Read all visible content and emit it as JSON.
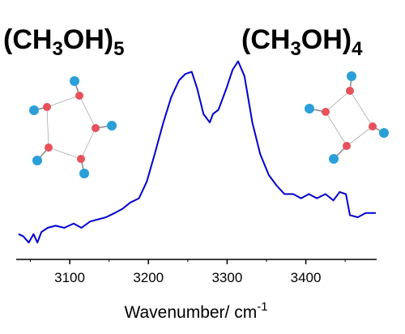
{
  "chart_data": {
    "type": "line",
    "annotations": [
      {
        "parts": [
          "(CH",
          "3",
          "OH)",
          "5"
        ]
      },
      {
        "parts": [
          "(CH",
          "3",
          "OH)",
          "4"
        ]
      }
    ],
    "x_label": {
      "parts": [
        "Wavenumber/ cm",
        "-1"
      ]
    },
    "x": [
      3035,
      3041,
      3048,
      3054,
      3059,
      3064,
      3072,
      3082,
      3093,
      3105,
      3115,
      3126,
      3136,
      3146,
      3157,
      3167,
      3177,
      3188,
      3198,
      3208,
      3219,
      3229,
      3239,
      3247,
      3255,
      3262,
      3270,
      3278,
      3282,
      3289,
      3299,
      3307,
      3314,
      3322,
      3332,
      3342,
      3353,
      3363,
      3373,
      3384,
      3394,
      3404,
      3414,
      3425,
      3435,
      3443,
      3451,
      3456,
      3466,
      3476,
      3489
    ],
    "series": [
      {
        "color": "#0000cc",
        "values": [
          0.12,
          0.11,
          0.08,
          0.12,
          0.08,
          0.13,
          0.15,
          0.16,
          0.15,
          0.17,
          0.15,
          0.18,
          0.19,
          0.2,
          0.22,
          0.24,
          0.27,
          0.29,
          0.37,
          0.5,
          0.65,
          0.77,
          0.85,
          0.88,
          0.89,
          0.81,
          0.69,
          0.65,
          0.69,
          0.71,
          0.81,
          0.9,
          0.94,
          0.87,
          0.65,
          0.5,
          0.4,
          0.35,
          0.31,
          0.31,
          0.29,
          0.31,
          0.29,
          0.31,
          0.28,
          0.32,
          0.31,
          0.21,
          0.2,
          0.22,
          0.22
        ]
      }
    ],
    "xlim": [
      3032,
      3490
    ],
    "xticks": [
      3100,
      3200,
      3300,
      3400
    ],
    "xminorticks": [
      3050,
      3150,
      3250,
      3350,
      3450
    ],
    "ylim": [
      0,
      1
    ]
  }
}
